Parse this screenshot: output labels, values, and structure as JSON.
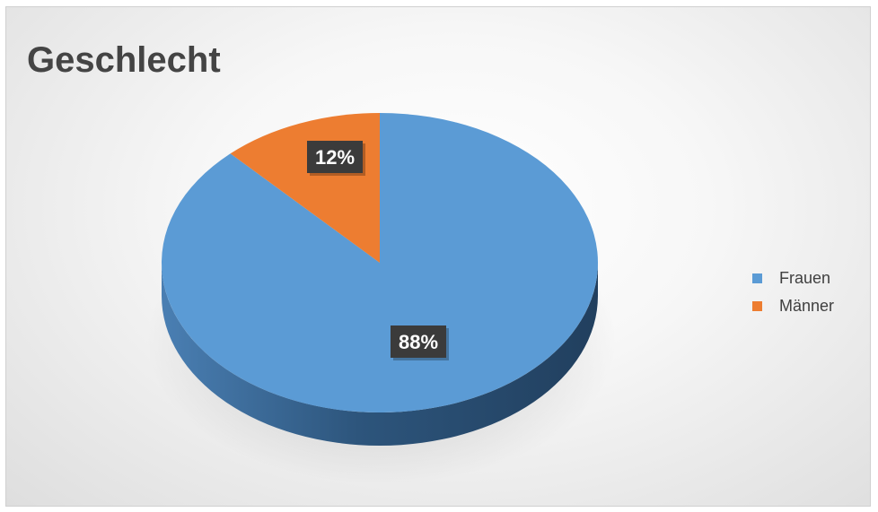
{
  "chart_data": {
    "type": "pie",
    "title": "Geschlecht",
    "series": [
      {
        "name": "Frauen",
        "value": 88,
        "label": "88%",
        "color": "#5B9BD5"
      },
      {
        "name": "Männer",
        "value": 12,
        "label": "12%",
        "color": "#ED7D31"
      }
    ],
    "legend": "right",
    "three_d": true,
    "data_label_style": "dark box, white bold text"
  }
}
